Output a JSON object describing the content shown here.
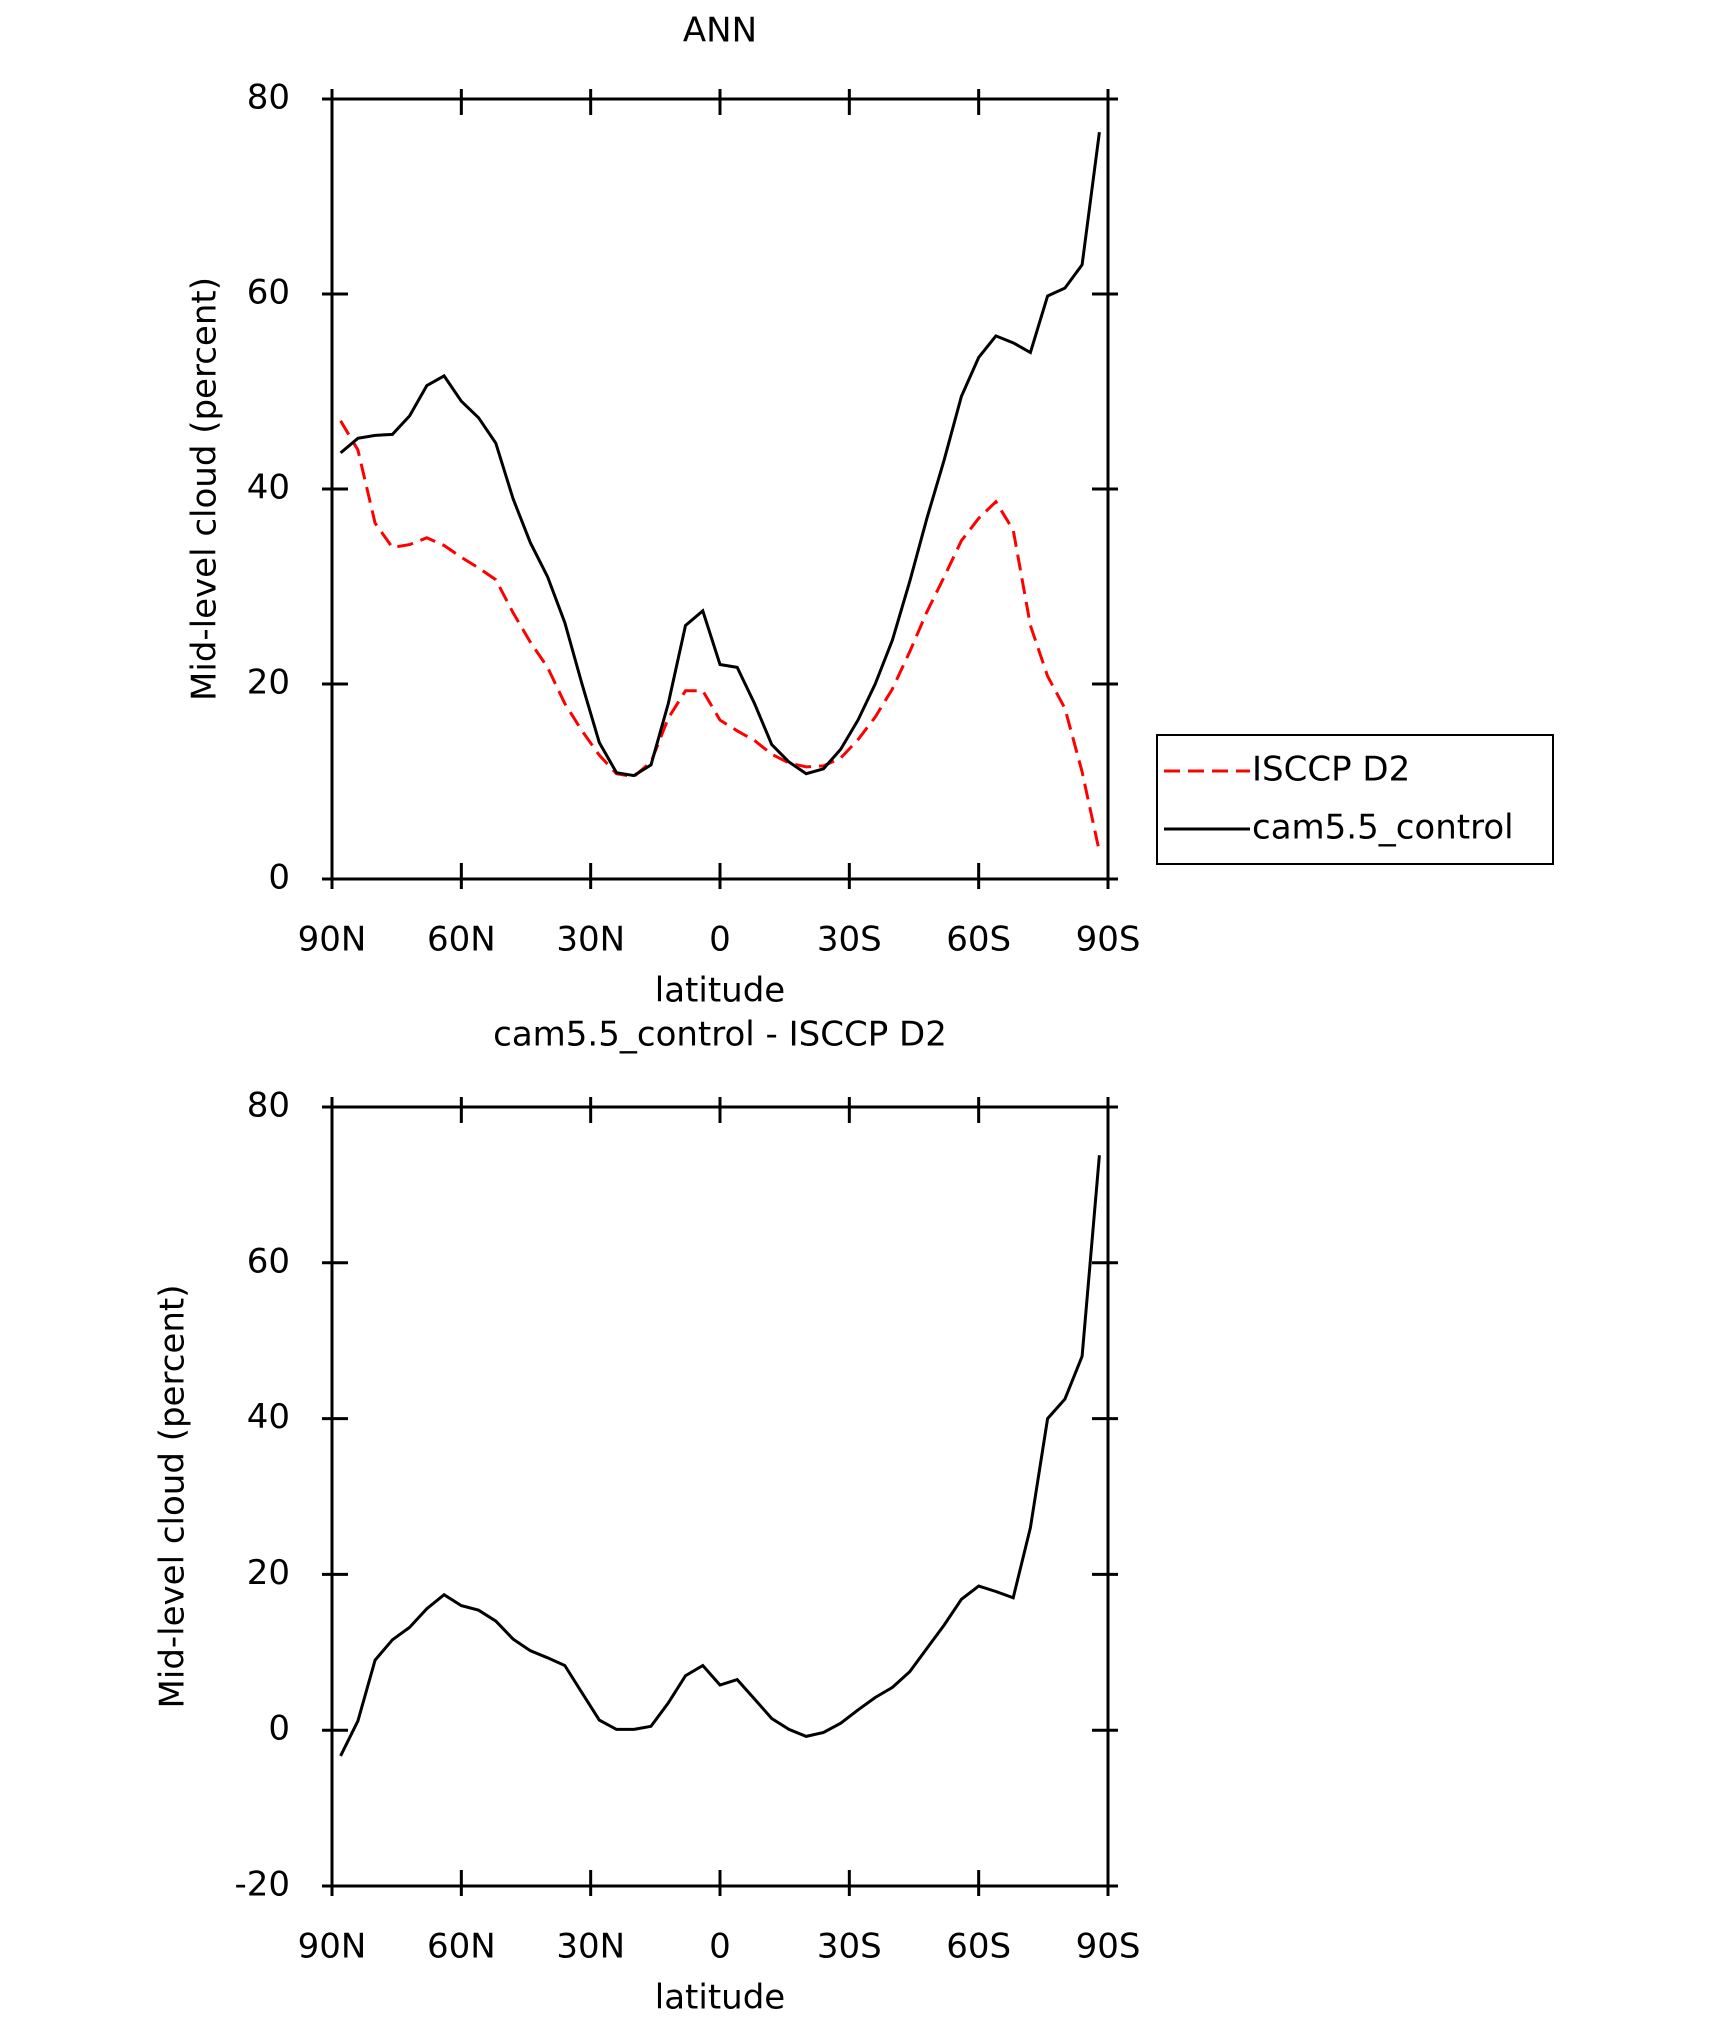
{
  "chart_data": [
    {
      "type": "line",
      "title": "ANN",
      "xlabel": "latitude",
      "ylabel": "Mid-level cloud (percent)",
      "x": [
        88,
        84,
        80,
        76,
        72,
        68,
        64,
        60,
        56,
        52,
        48,
        44,
        40,
        36,
        32,
        28,
        24,
        20,
        16,
        12,
        8,
        4,
        0,
        -4,
        -8,
        -12,
        -16,
        -20,
        -24,
        -28,
        -32,
        -36,
        -40,
        -44,
        -48,
        -52,
        -56,
        -60,
        -64,
        -68,
        -72,
        -76,
        -80,
        -84,
        -88
      ],
      "series": [
        {
          "name": "ISCCP D2",
          "color": "#ff0000",
          "dashed": true,
          "values": [
            47,
            44,
            36.5,
            34,
            34.3,
            35,
            34.2,
            33,
            31.9,
            30.7,
            27.3,
            24.3,
            21.7,
            18,
            15.2,
            12.7,
            10.8,
            10.5,
            12,
            16.5,
            19.3,
            19.3,
            16.3,
            15.2,
            14.2,
            12.8,
            11.9,
            11.5,
            11.6,
            12.4,
            14.3,
            16.6,
            19.5,
            23.3,
            27.4,
            31,
            34.7,
            37,
            38.7,
            35.8,
            26,
            20.8,
            17.5,
            11,
            2.8
          ]
        },
        {
          "name": "cam5.5_control",
          "color": "#000000",
          "dashed": false,
          "values": [
            43.7,
            45.2,
            45.5,
            45.6,
            47.5,
            50.6,
            51.6,
            49,
            47.3,
            44.7,
            39,
            34.5,
            31,
            26.3,
            20,
            14,
            10.9,
            10.6,
            11.7,
            18,
            26,
            27.5,
            22,
            21.7,
            18,
            13.8,
            12,
            10.8,
            11.3,
            13.3,
            16.3,
            20,
            24.5,
            30.5,
            37,
            43,
            49.5,
            53.5,
            55.7,
            55,
            54,
            59.8,
            60.6,
            63,
            76.6
          ]
        }
      ],
      "xlim": [
        90,
        -90
      ],
      "ylim": [
        0,
        80
      ],
      "xticks": [
        {
          "value": 90,
          "label": "90N"
        },
        {
          "value": 60,
          "label": "60N"
        },
        {
          "value": 30,
          "label": "30N"
        },
        0,
        {
          "value": -30,
          "label": "30S"
        },
        {
          "value": -60,
          "label": "60S"
        },
        {
          "value": -90,
          "label": "90S"
        }
      ],
      "yticks": [
        0,
        20,
        40,
        60,
        80
      ],
      "legend": "right"
    },
    {
      "type": "line",
      "title": "cam5.5_control - ISCCP D2",
      "xlabel": "latitude",
      "ylabel": "Mid-level cloud (percent)",
      "x": [
        88,
        84,
        80,
        76,
        72,
        68,
        64,
        60,
        56,
        52,
        48,
        44,
        40,
        36,
        32,
        28,
        24,
        20,
        16,
        12,
        8,
        4,
        0,
        -4,
        -8,
        -12,
        -16,
        -20,
        -24,
        -28,
        -32,
        -36,
        -40,
        -44,
        -48,
        -52,
        -56,
        -60,
        -64,
        -68,
        -72,
        -76,
        -80,
        -84,
        -88
      ],
      "series": [
        {
          "color": "#000000",
          "dashed": false,
          "values": [
            -3.3,
            1.2,
            9,
            11.6,
            13.2,
            15.6,
            17.4,
            16,
            15.4,
            14,
            11.7,
            10.2,
            9.3,
            8.3,
            4.8,
            1.3,
            0.1,
            0.1,
            0.5,
            3.5,
            7,
            8.3,
            5.8,
            6.5,
            4,
            1.5,
            0.1,
            -0.8,
            -0.3,
            0.9,
            2.6,
            4.2,
            5.5,
            7.5,
            10.5,
            13.5,
            16.8,
            18.5,
            17.8,
            17,
            26,
            40,
            42.5,
            48,
            73.8
          ]
        }
      ],
      "xlim": [
        90,
        -90
      ],
      "ylim": [
        -20,
        80
      ],
      "xticks": [
        {
          "value": 90,
          "label": "90N"
        },
        {
          "value": 60,
          "label": "60N"
        },
        {
          "value": 30,
          "label": "30N"
        },
        0,
        {
          "value": -30,
          "label": "30S"
        },
        {
          "value": -60,
          "label": "60S"
        },
        {
          "value": -90,
          "label": "90S"
        }
      ],
      "yticks": [
        -20,
        0,
        20,
        40,
        60,
        80
      ]
    }
  ]
}
